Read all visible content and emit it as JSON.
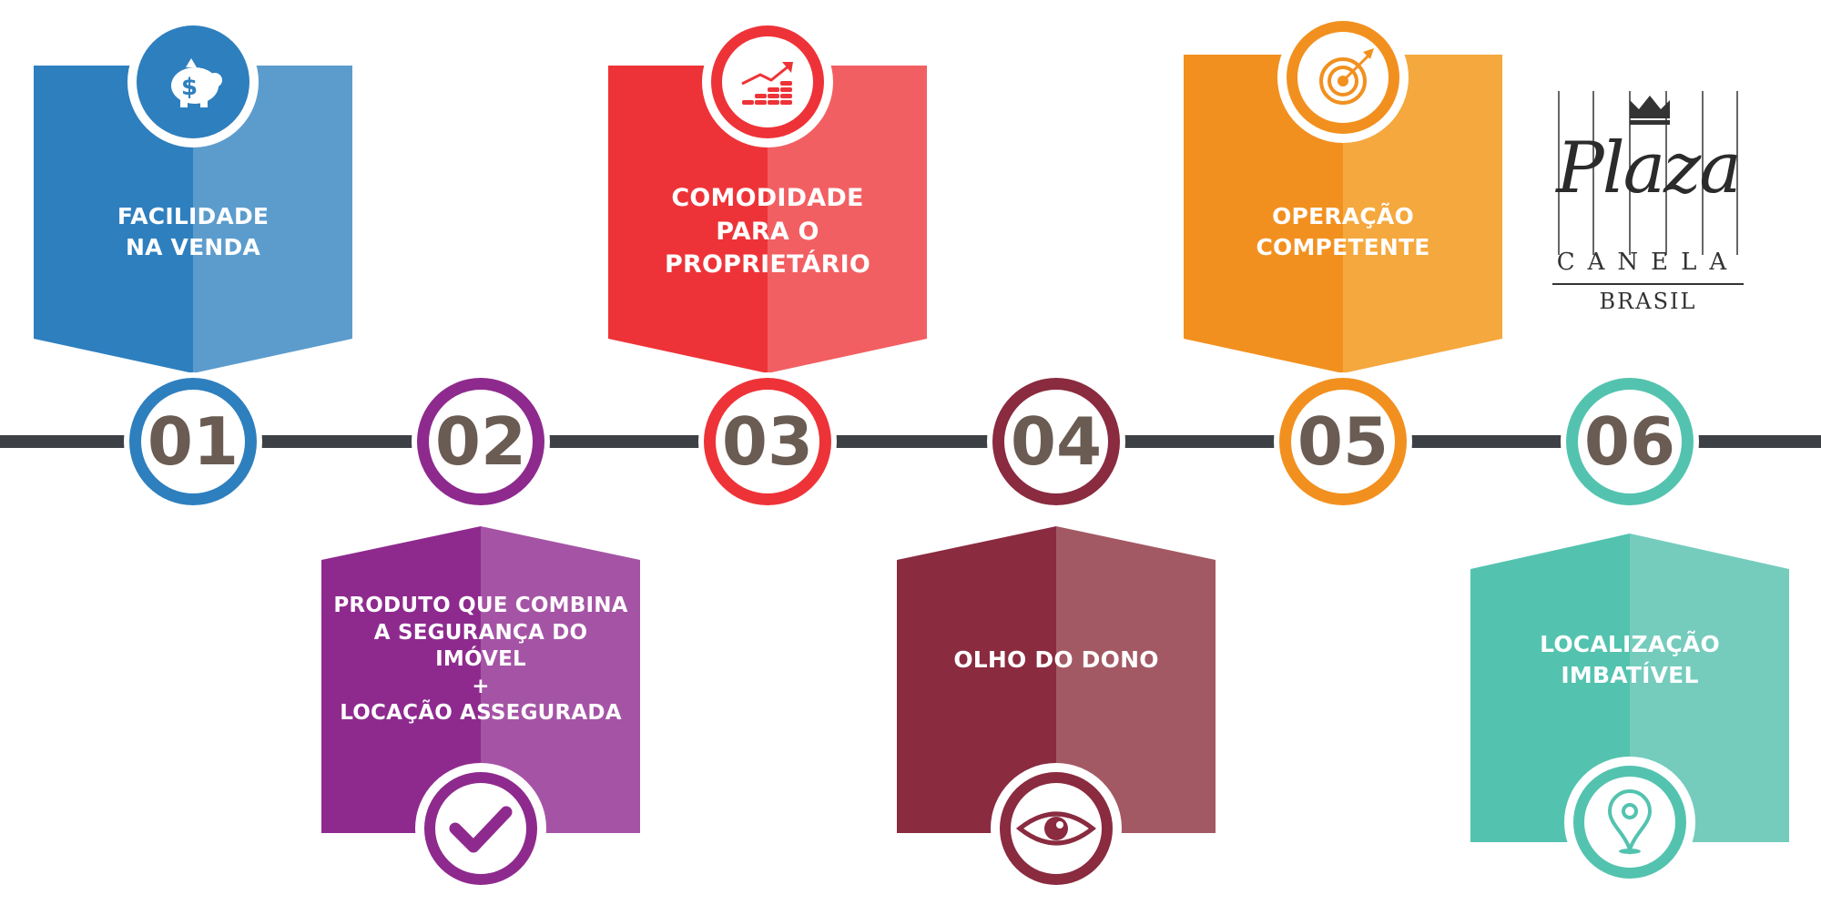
{
  "logo": {
    "script": "Plaza",
    "city": "CANELA",
    "country": "BRASIL"
  },
  "colors": {
    "line": "#3d4145",
    "number_text": "#6a5c53",
    "blue": "#2e7fbe",
    "purple": "#8e2a8e",
    "red": "#ee3338",
    "maroon": "#8a2b40",
    "orange": "#f2901f",
    "teal": "#53c3af"
  },
  "steps": [
    {
      "number": "01",
      "position": "top",
      "color": "blue",
      "light": "#5c9ccd",
      "icon": "piggy-bank-icon",
      "lines": [
        "FACILIDADE",
        "NA VENDA"
      ]
    },
    {
      "number": "02",
      "position": "bottom",
      "color": "purple",
      "light": "#a554a5",
      "icon": "checkmark-icon",
      "lines": [
        "PRODUTO QUE COMBINA",
        "A SEGURANÇA DO",
        "IMÓVEL",
        "+",
        "LOCAÇÃO ASSEGURADA"
      ]
    },
    {
      "number": "03",
      "position": "top",
      "color": "red",
      "light": "#f25f62",
      "icon": "growth-chart-icon",
      "lines": [
        "COMODIDADE",
        "PARA O",
        "PROPRIETÁRIO"
      ]
    },
    {
      "number": "04",
      "position": "bottom",
      "color": "maroon",
      "light": "#a35964",
      "icon": "eye-icon",
      "lines": [
        "OLHO DO DONO"
      ]
    },
    {
      "number": "05",
      "position": "top",
      "color": "orange",
      "light": "#f5a83d",
      "icon": "target-icon",
      "lines": [
        "OPERAÇÃO",
        "COMPETENTE"
      ]
    },
    {
      "number": "06",
      "position": "bottom",
      "color": "teal",
      "light": "#75ccbd",
      "icon": "location-pin-icon",
      "lines": [
        "LOCALIZAÇÃO",
        "IMBATÍVEL"
      ]
    }
  ]
}
